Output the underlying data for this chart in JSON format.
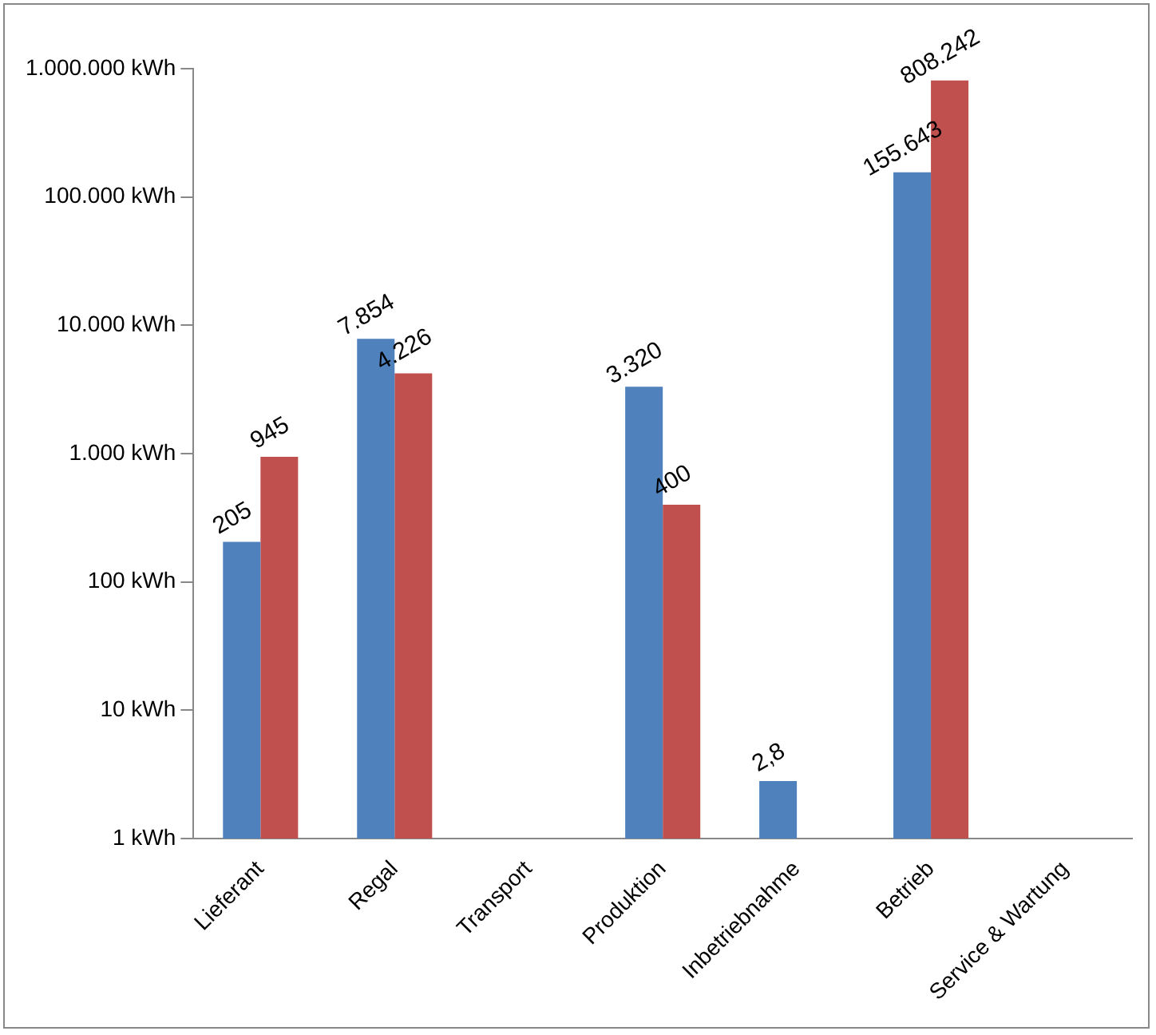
{
  "chart_data": {
    "type": "bar",
    "log": "y",
    "grid": false,
    "legend": false,
    "categories": [
      "Lieferant",
      "Regal",
      "Transport",
      "Produktion",
      "Inbetriebnahme",
      "Betrieb",
      "Service & Wartung"
    ],
    "ylim": [
      1,
      1000000
    ],
    "yticks": [
      {
        "value": 1,
        "label": "1 kWh"
      },
      {
        "value": 10,
        "label": "10 kWh"
      },
      {
        "value": 100,
        "label": "100 kWh"
      },
      {
        "value": 1000,
        "label": "1.000 kWh"
      },
      {
        "value": 10000,
        "label": "10.000 kWh"
      },
      {
        "value": 100000,
        "label": "100.000 kWh"
      },
      {
        "value": 1000000,
        "label": "1.000.000 kWh"
      }
    ],
    "series": [
      {
        "color": "#4f81bd",
        "values": [
          205,
          7854,
          null,
          3320,
          2.8,
          155643,
          null
        ],
        "value_labels": [
          "205",
          "7.854",
          null,
          "3.320",
          "2,8",
          "155.643",
          null
        ]
      },
      {
        "color": "#c0504d",
        "values": [
          945,
          4226,
          null,
          400,
          null,
          808242,
          null
        ],
        "value_labels": [
          "945",
          "4.226",
          null,
          "400",
          null,
          "808.242",
          null
        ]
      }
    ]
  }
}
